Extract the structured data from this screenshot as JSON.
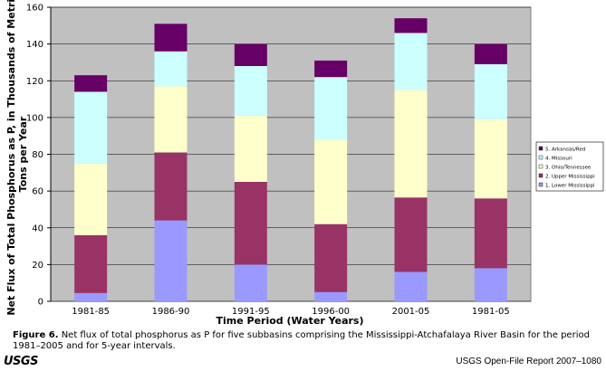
{
  "chart_data": {
    "type": "stacked-bar",
    "ylabel_lines": [
      "Net Flux of Total Phosphorus as P, in Thousands of Metric",
      "Tons per Year"
    ],
    "xlabel": "Time Period (Water Years)",
    "categories": [
      "1981-85",
      "1986-90",
      "1991-95",
      "1996-00",
      "2001-05",
      "1981-05"
    ],
    "series": [
      {
        "name": "1. Lower Mississippi",
        "color": "#9999ff",
        "values": [
          4.5,
          44,
          20,
          5,
          16,
          18
        ]
      },
      {
        "name": "2. Upper Mississippi",
        "color": "#993366",
        "values": [
          31.5,
          37,
          45,
          37,
          40.5,
          38
        ]
      },
      {
        "name": "3. Ohio/Tennessee",
        "color": "#ffffcc",
        "values": [
          39,
          36,
          36,
          46,
          58.5,
          43
        ]
      },
      {
        "name": "4. Missouri",
        "color": "#ccffff",
        "values": [
          39,
          19,
          27,
          34,
          31,
          30
        ]
      },
      {
        "name": "5. Arkansas/Red",
        "color": "#660066",
        "values": [
          9,
          15,
          12,
          9,
          8,
          11
        ]
      }
    ],
    "ylim": [
      0,
      160
    ],
    "yticks": [
      0,
      20,
      40,
      60,
      80,
      100,
      120,
      140,
      160
    ],
    "grid": true,
    "legend": "right",
    "plot_background": "#c0c0c0"
  },
  "caption": {
    "label": "Figure 6.",
    "text": "Net flux of total phosphorus as P for five subbasins comprising the Mississippi-Atchafalaya River Basin for the period 1981–2005 and for 5-year intervals."
  },
  "footer": {
    "logo": "USGS",
    "report": "USGS Open-File Report 2007–1080"
  }
}
